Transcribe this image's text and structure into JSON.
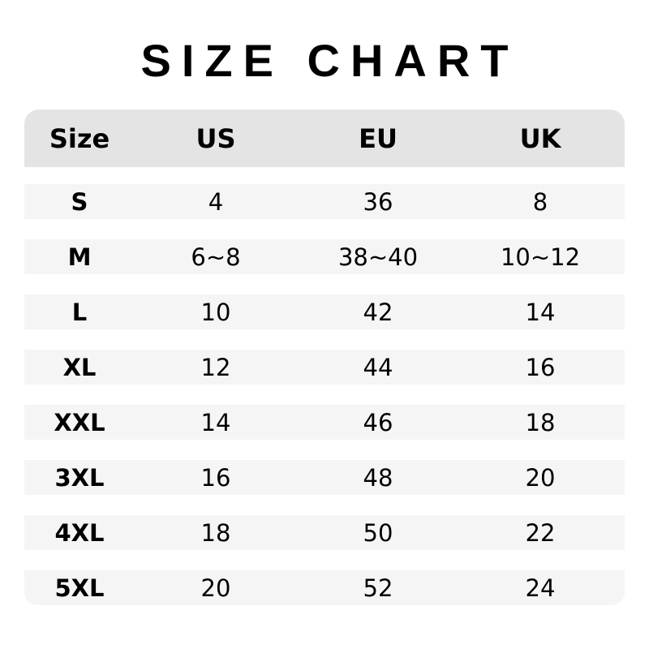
{
  "title": "SIZE CHART",
  "colors": {
    "header_bg": "#e4e4e4",
    "row_bg": "#f5f5f5"
  },
  "headers": [
    "Size",
    "US",
    "EU",
    "UK"
  ],
  "rows": [
    [
      "S",
      "4",
      "36",
      "8"
    ],
    [
      "M",
      "6~8",
      "38~40",
      "10~12"
    ],
    [
      "L",
      "10",
      "42",
      "14"
    ],
    [
      "XL",
      "12",
      "44",
      "16"
    ],
    [
      "XXL",
      "14",
      "46",
      "18"
    ],
    [
      "3XL",
      "16",
      "48",
      "20"
    ],
    [
      "4XL",
      "18",
      "50",
      "22"
    ],
    [
      "5XL",
      "20",
      "52",
      "24"
    ]
  ]
}
